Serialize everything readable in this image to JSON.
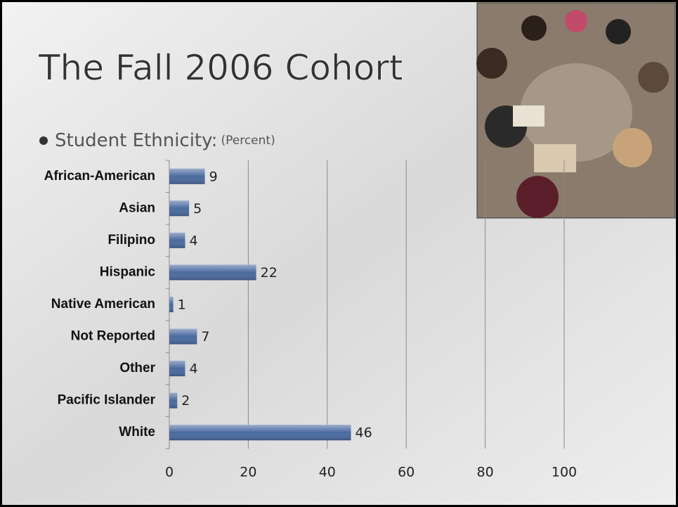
{
  "chart_data": {
    "type": "bar",
    "orientation": "horizontal",
    "title": "The Fall 2006 Cohort",
    "subtitle": "Student Ethnicity:",
    "unit_note": "(Percent)",
    "categories": [
      "African-American",
      "Asian",
      "Filipino",
      "Hispanic",
      "Native American",
      "Not Reported",
      "Other",
      "Pacific Islander",
      "White"
    ],
    "values": [
      9,
      5,
      4,
      22,
      1,
      7,
      4,
      2,
      46
    ],
    "color": "#4a6a9f",
    "xlim": [
      0,
      100
    ],
    "xticks": [
      0,
      20,
      40,
      60,
      80,
      100
    ],
    "grid": true
  }
}
